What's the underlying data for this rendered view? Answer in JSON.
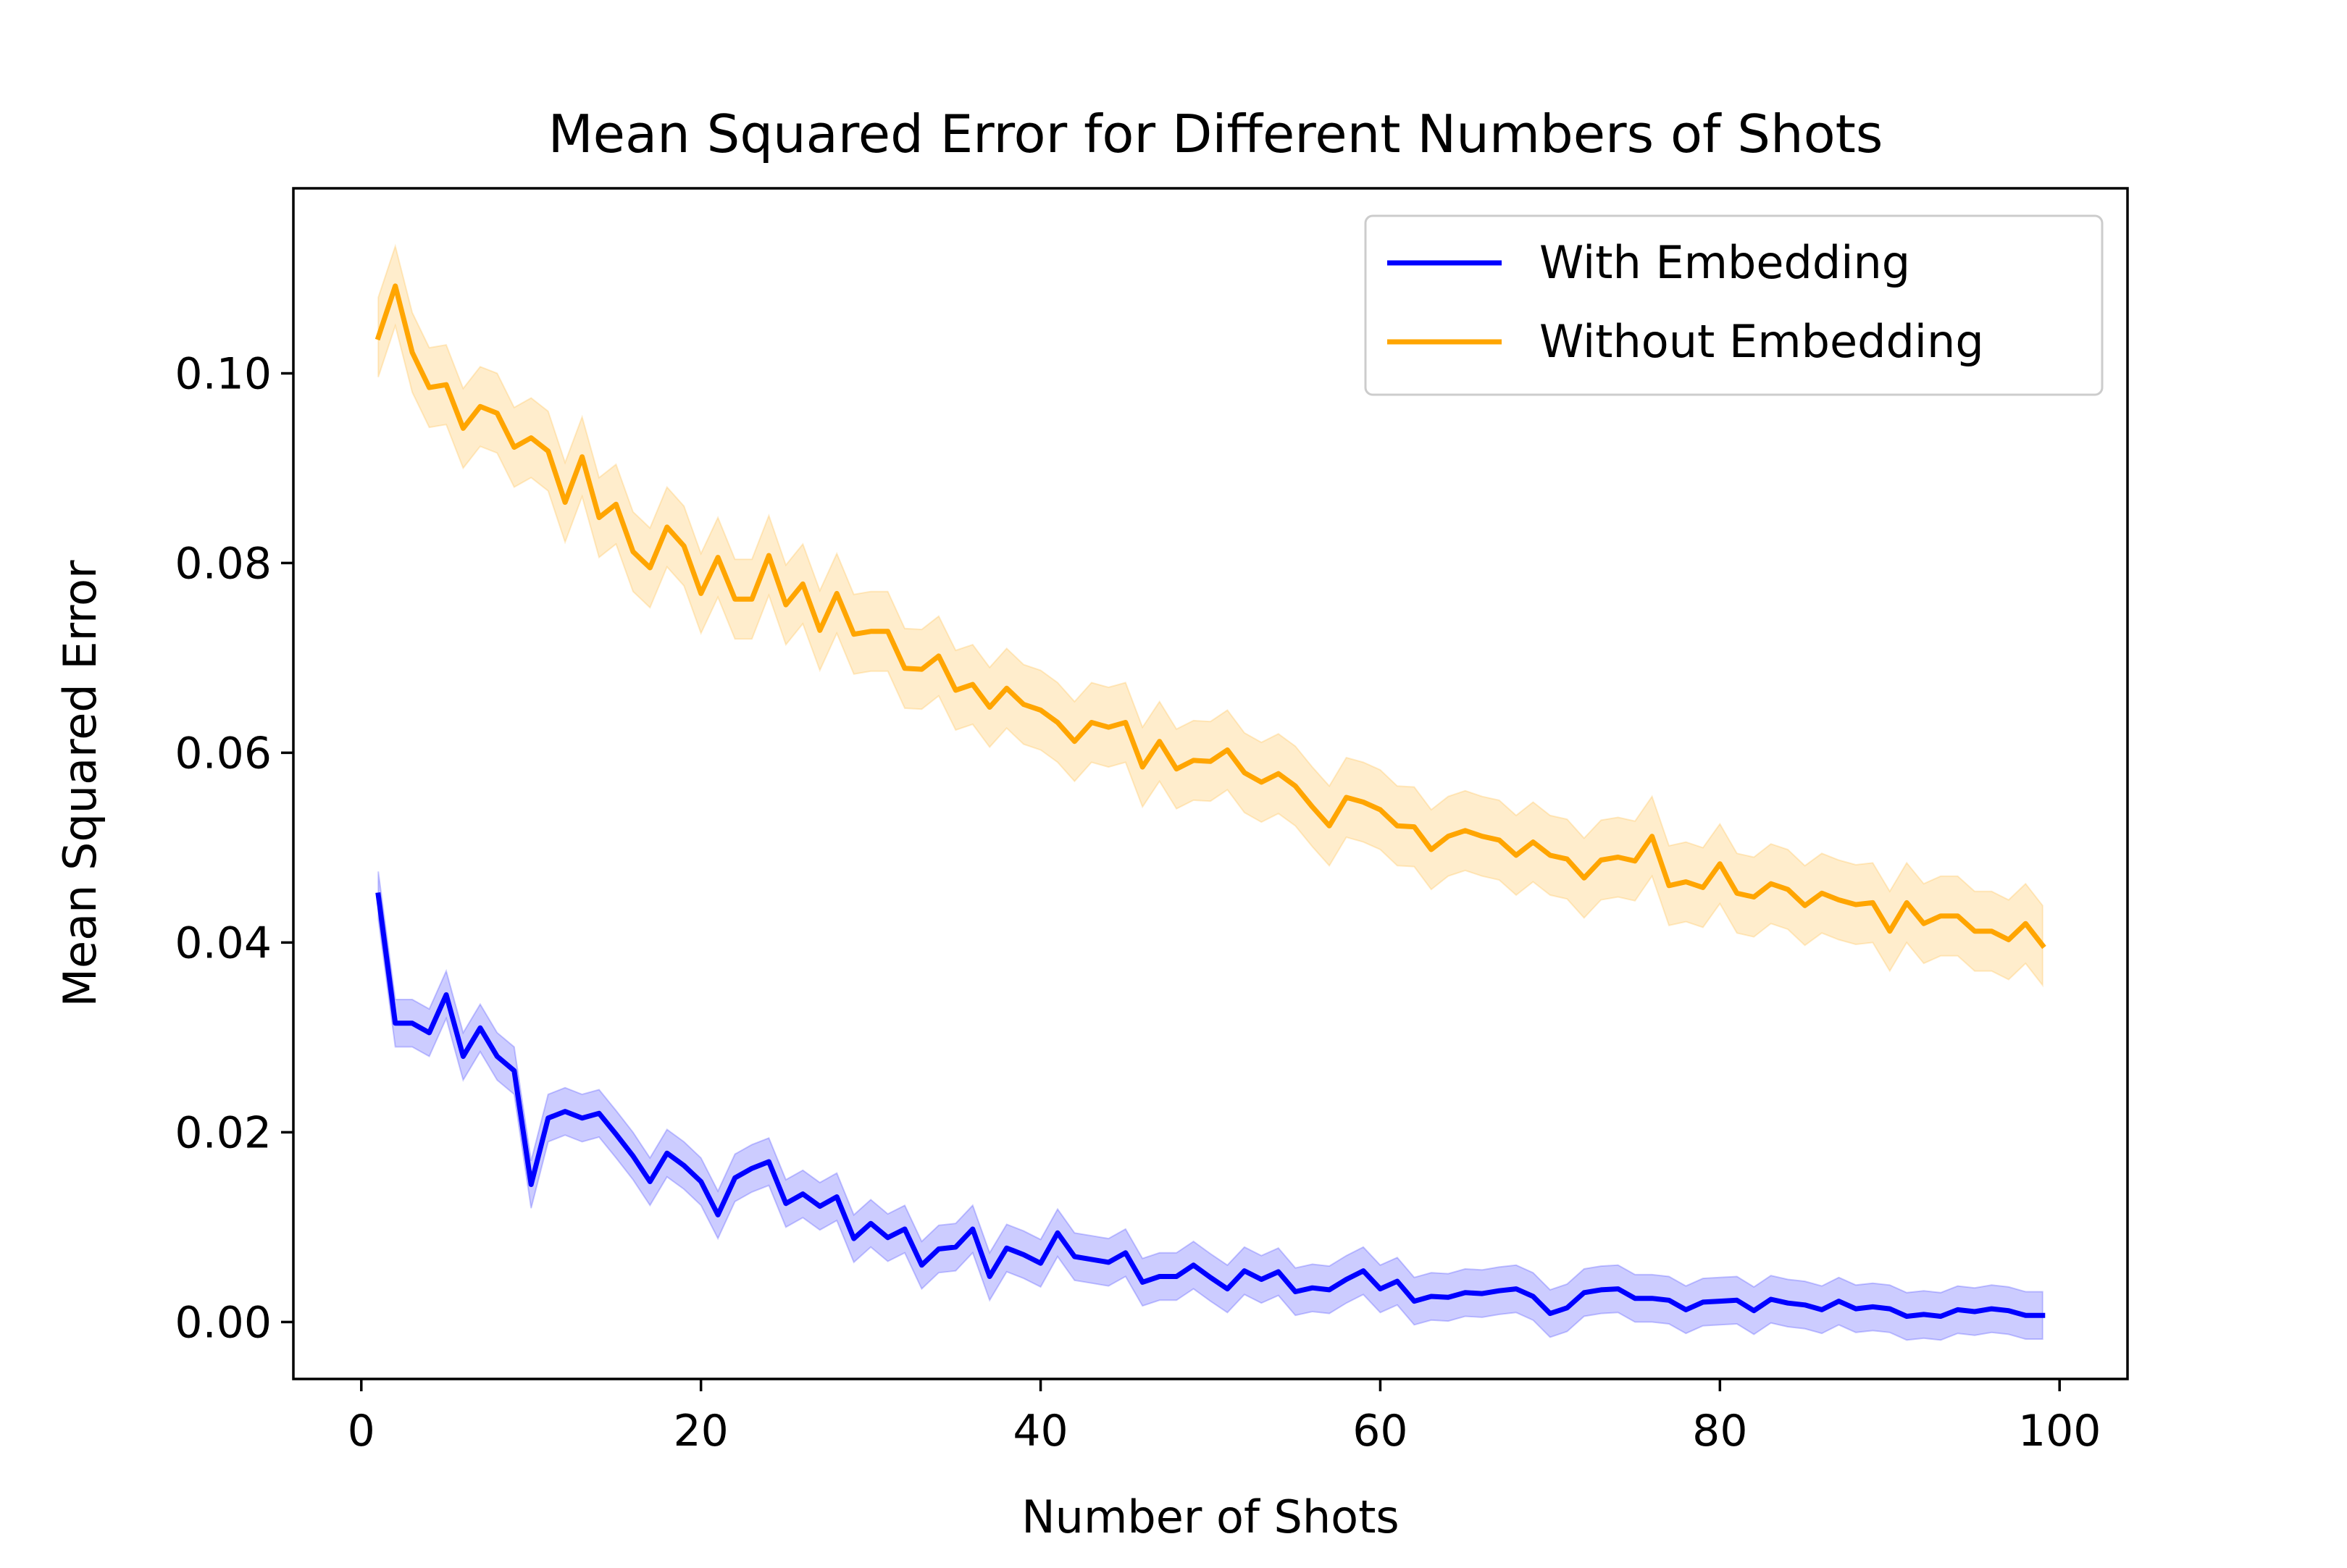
{
  "chart_data": {
    "type": "line",
    "title": "Mean Squared Error for Different Numbers of Shots",
    "xlabel": "Number of Shots",
    "ylabel": "Mean Squared Error",
    "xlim": [
      -4,
      104
    ],
    "ylim": [
      -0.006,
      0.1195
    ],
    "xticks": [
      0,
      20,
      40,
      60,
      80,
      100
    ],
    "yticks": [
      0.0,
      0.02,
      0.04,
      0.06,
      0.08,
      0.1
    ],
    "xtick_labels": [
      "0",
      "20",
      "40",
      "60",
      "80",
      "100"
    ],
    "ytick_labels": [
      "0.00",
      "0.02",
      "0.04",
      "0.06",
      "0.08",
      "0.10"
    ],
    "grid": false,
    "legend_position": "top-right",
    "x": [
      1,
      2,
      3,
      4,
      5,
      6,
      7,
      8,
      9,
      10,
      11,
      12,
      13,
      14,
      15,
      16,
      17,
      18,
      19,
      20,
      21,
      22,
      23,
      24,
      25,
      26,
      27,
      28,
      29,
      30,
      31,
      32,
      33,
      34,
      35,
      36,
      37,
      38,
      39,
      40,
      41,
      42,
      43,
      44,
      45,
      46,
      47,
      48,
      49,
      50,
      51,
      52,
      53,
      54,
      55,
      56,
      57,
      58,
      59,
      60,
      61,
      62,
      63,
      64,
      65,
      66,
      67,
      68,
      69,
      70,
      71,
      72,
      73,
      74,
      75,
      76,
      77,
      78,
      79,
      80,
      81,
      82,
      83,
      84,
      85,
      86,
      87,
      88,
      89,
      90,
      91,
      92,
      93,
      94,
      95,
      96,
      97,
      98,
      99
    ],
    "series": [
      {
        "name": "With Embedding",
        "color": "#0000ff",
        "band": 0.0025,
        "values": [
          0.045,
          0.0315,
          0.0315,
          0.0305,
          0.0345,
          0.028,
          0.031,
          0.028,
          0.0265,
          0.0145,
          0.0215,
          0.0222,
          0.0215,
          0.022,
          0.0198,
          0.0175,
          0.0148,
          0.0178,
          0.0165,
          0.0148,
          0.0113,
          0.0152,
          0.0162,
          0.0169,
          0.0125,
          0.0135,
          0.0122,
          0.0132,
          0.0088,
          0.0104,
          0.0089,
          0.0098,
          0.006,
          0.0077,
          0.0079,
          0.0098,
          0.0048,
          0.0078,
          0.0071,
          0.0062,
          0.0094,
          0.0069,
          0.0066,
          0.0063,
          0.0073,
          0.0042,
          0.0048,
          0.0048,
          0.006,
          0.0047,
          0.0035,
          0.0054,
          0.0045,
          0.0053,
          0.0032,
          0.0036,
          0.0034,
          0.0045,
          0.0054,
          0.0035,
          0.0043,
          0.0022,
          0.0027,
          0.0026,
          0.0031,
          0.003,
          0.0033,
          0.0035,
          0.0027,
          0.0009,
          0.0015,
          0.0031,
          0.0034,
          0.0035,
          0.0025,
          0.0025,
          0.0023,
          0.0013,
          0.0021,
          0.0022,
          0.0023,
          0.0012,
          0.0024,
          0.002,
          0.0018,
          0.0013,
          0.0022,
          0.0014,
          0.0016,
          0.0014,
          0.0006,
          0.0008,
          0.0006,
          0.0013,
          0.0011,
          0.0014,
          0.0012,
          0.0007,
          0.0007
        ]
      },
      {
        "name": "Without Embedding",
        "color": "#ffa500",
        "band": 0.0042,
        "values": [
          0.1038,
          0.1092,
          0.1022,
          0.0985,
          0.0988,
          0.0942,
          0.0965,
          0.0958,
          0.0922,
          0.0932,
          0.0918,
          0.0864,
          0.0912,
          0.0848,
          0.0862,
          0.0812,
          0.0795,
          0.0838,
          0.0818,
          0.0768,
          0.0806,
          0.0762,
          0.0762,
          0.0808,
          0.0756,
          0.0778,
          0.0729,
          0.0768,
          0.0725,
          0.0728,
          0.0728,
          0.0689,
          0.0688,
          0.0702,
          0.0666,
          0.0672,
          0.0648,
          0.0668,
          0.0651,
          0.0645,
          0.0632,
          0.0612,
          0.0632,
          0.0627,
          0.0632,
          0.0585,
          0.0612,
          0.0583,
          0.0592,
          0.0591,
          0.0603,
          0.0579,
          0.0569,
          0.0578,
          0.0565,
          0.0543,
          0.0523,
          0.0553,
          0.0548,
          0.054,
          0.0523,
          0.0522,
          0.0498,
          0.0512,
          0.0518,
          0.0512,
          0.0508,
          0.0492,
          0.0506,
          0.0492,
          0.0488,
          0.0468,
          0.0487,
          0.049,
          0.0486,
          0.0512,
          0.046,
          0.0464,
          0.0458,
          0.0483,
          0.0452,
          0.0448,
          0.0462,
          0.0456,
          0.0439,
          0.0452,
          0.0445,
          0.044,
          0.0442,
          0.0412,
          0.0442,
          0.042,
          0.0428,
          0.0428,
          0.0412,
          0.0412,
          0.0403,
          0.042,
          0.0397
        ]
      }
    ]
  }
}
